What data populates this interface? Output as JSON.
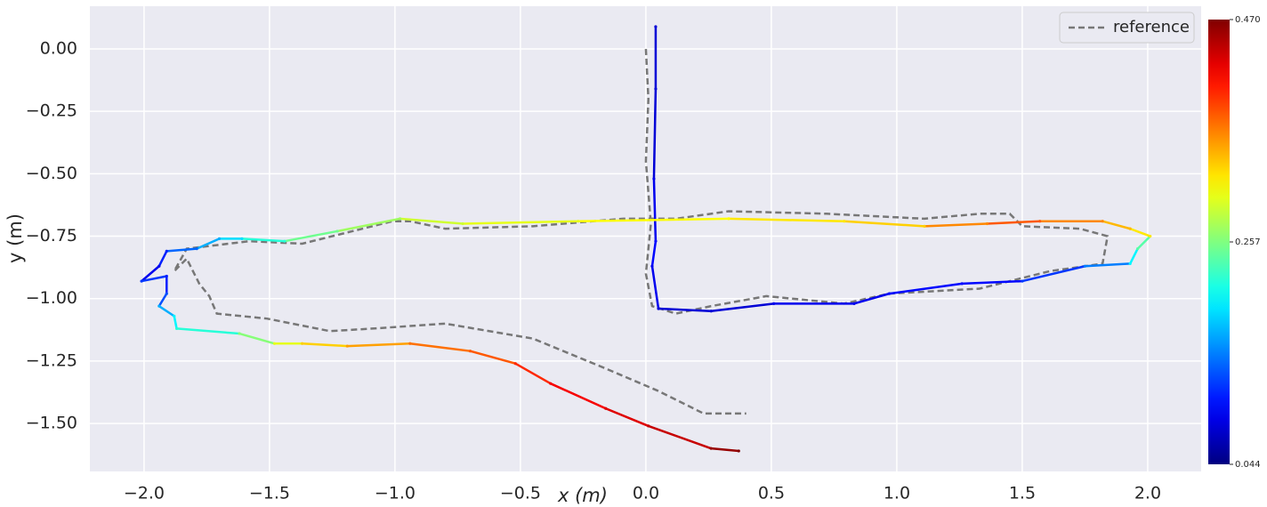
{
  "chart_data": {
    "type": "trajectory",
    "xlabel": "x (m)",
    "ylabel": "y (m)",
    "xlim": [
      -2.216,
      2.213
    ],
    "ylim": [
      -1.692,
      0.171
    ],
    "xticks": [
      {
        "value": -2.0,
        "label": "−2.0"
      },
      {
        "value": -1.5,
        "label": "−1.5"
      },
      {
        "value": -1.0,
        "label": "−1.0"
      },
      {
        "value": -0.5,
        "label": "−0.5"
      },
      {
        "value": 0.0,
        "label": "0.0"
      },
      {
        "value": 0.5,
        "label": "0.5"
      },
      {
        "value": 1.0,
        "label": "1.0"
      },
      {
        "value": 1.5,
        "label": "1.5"
      },
      {
        "value": 2.0,
        "label": "2.0"
      }
    ],
    "yticks": [
      {
        "value": 0.0,
        "label": "0.00"
      },
      {
        "value": -0.25,
        "label": "−0.25"
      },
      {
        "value": -0.5,
        "label": "−0.50"
      },
      {
        "value": -0.75,
        "label": "−0.75"
      },
      {
        "value": -1.0,
        "label": "−1.00"
      },
      {
        "value": -1.25,
        "label": "−1.25"
      },
      {
        "value": -1.5,
        "label": "−1.50"
      }
    ],
    "grid": true,
    "legend": "upper right",
    "cmap": "jet",
    "clim": [
      0.044,
      0.47
    ],
    "colorbar_ticks": [
      0.044,
      0.257,
      {
        "value": 0.47,
        "label": "0.470"
      }
    ],
    "series": [
      {
        "name": "reference",
        "color": "#777777",
        "dashed": true,
        "x": [
          0,
          0.01,
          0.0,
          0.02,
          0.0,
          0.025,
          0.12,
          0.26,
          0.48,
          0.79,
          0.97,
          1.33,
          1.61,
          1.82,
          1.84,
          1.73,
          1.5,
          1.45,
          1.33,
          1.11,
          0.72,
          0.33,
          0.12,
          -0.09,
          -0.45,
          -0.8,
          -0.94,
          -1.01,
          -1.37,
          -1.58,
          -1.83,
          -1.88,
          -1.83,
          -1.78,
          -1.74,
          -1.71,
          -1.51,
          -1.26,
          -1.09,
          -0.8,
          -0.45,
          -0.16,
          0.05,
          0.23,
          0.4
        ],
        "y": [
          0,
          -0.2,
          -0.45,
          -0.7,
          -0.9,
          -1.03,
          -1.06,
          -1.03,
          -0.99,
          -1.02,
          -0.98,
          -0.96,
          -0.89,
          -0.86,
          -0.75,
          -0.72,
          -0.71,
          -0.66,
          -0.66,
          -0.68,
          -0.66,
          -0.65,
          -0.68,
          -0.68,
          -0.71,
          -0.72,
          -0.69,
          -0.69,
          -0.78,
          -0.77,
          -0.8,
          -0.89,
          -0.84,
          -0.94,
          -0.99,
          -1.06,
          -1.08,
          -1.13,
          -1.12,
          -1.1,
          -1.16,
          -1.28,
          -1.37,
          -1.46,
          -1.46
        ]
      },
      {
        "color_by": "error",
        "x": [
          0.039,
          0.039,
          0.032,
          0.039,
          0.025,
          0.05,
          0.26,
          0.51,
          0.83,
          0.97,
          1.26,
          1.5,
          1.75,
          1.93,
          1.96,
          2.01,
          1.93,
          1.82,
          1.57,
          1.36,
          1.11,
          0.79,
          0.33,
          -0.27,
          -0.73,
          -0.98,
          -1.23,
          -1.44,
          -1.61,
          -1.7,
          -1.79,
          -1.91,
          -1.94,
          -2.01,
          -1.91,
          -1.91,
          -1.94,
          -1.88,
          -1.87,
          -1.62,
          -1.48,
          -1.37,
          -1.19,
          -0.94,
          -0.7,
          -0.52,
          -0.38,
          -0.16,
          0.01,
          0.26,
          0.37
        ],
        "y": [
          0.089,
          -0.16,
          -0.52,
          -0.77,
          -0.87,
          -1.04,
          -1.05,
          -1.02,
          -1.02,
          -0.98,
          -0.94,
          -0.93,
          -0.87,
          -0.86,
          -0.8,
          -0.75,
          -0.72,
          -0.69,
          -0.69,
          -0.7,
          -0.71,
          -0.69,
          -0.68,
          -0.69,
          -0.7,
          -0.68,
          -0.73,
          -0.77,
          -0.76,
          -0.76,
          -0.8,
          -0.81,
          -0.87,
          -0.93,
          -0.91,
          -0.98,
          -1.03,
          -1.07,
          -1.12,
          -1.14,
          -1.18,
          -1.18,
          -1.19,
          -1.18,
          -1.21,
          -1.26,
          -1.34,
          -1.44,
          -1.51,
          -1.6,
          -1.61
        ],
        "error": [
          0.08,
          0.08,
          0.09,
          0.1,
          0.09,
          0.08,
          0.08,
          0.09,
          0.09,
          0.1,
          0.1,
          0.12,
          0.15,
          0.2,
          0.24,
          0.32,
          0.34,
          0.36,
          0.38,
          0.36,
          0.33,
          0.32,
          0.31,
          0.3,
          0.29,
          0.27,
          0.25,
          0.22,
          0.19,
          0.17,
          0.14,
          0.11,
          0.09,
          0.12,
          0.11,
          0.13,
          0.17,
          0.2,
          0.22,
          0.26,
          0.3,
          0.33,
          0.35,
          0.37,
          0.38,
          0.4,
          0.42,
          0.43,
          0.44,
          0.46,
          0.47
        ]
      }
    ]
  }
}
